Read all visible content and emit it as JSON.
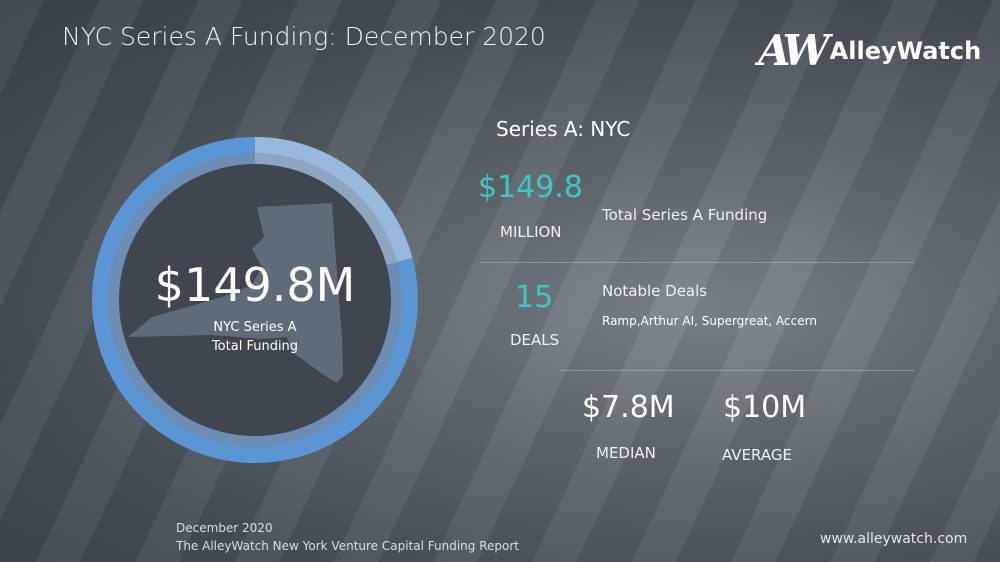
{
  "header": {
    "title": "NYC Series A Funding: December 2020"
  },
  "logo": {
    "mark": "AW",
    "word": "AlleyWatch"
  },
  "circle": {
    "amount": "$149.8M",
    "label_line1": "NYC Series A",
    "label_line2": "Total Funding",
    "colors": {
      "ring": "#5b95d3",
      "ring_light": "#98b8dc",
      "disc": "#3f4650",
      "state": "#5f6b78"
    }
  },
  "stats": {
    "heading": "Series A: NYC",
    "total_value": "$149.8",
    "total_unit": "MILLION",
    "total_label": "Total Series A Funding",
    "deals_value": "15",
    "deals_unit": "DEALS",
    "deals_label": "Notable Deals",
    "deals_list": "Ramp,Arthur AI, Supergreat, Accern",
    "median_value": "$7.8M",
    "median_label": "MEDIAN",
    "average_value": "$10M",
    "average_label": "AVERAGE",
    "accent": "#3ec6c0"
  },
  "footer": {
    "date": "December 2020",
    "report": "The AlleyWatch New York Venture Capital Funding Report",
    "url": "www.alleywatch.com"
  }
}
